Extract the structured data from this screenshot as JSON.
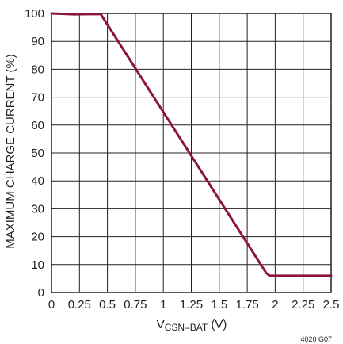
{
  "chart_data": {
    "type": "line",
    "ylabel": "MAXIMUM CHARGE CURRENT (%)",
    "xlabel_main": "V",
    "xlabel_sub": "CSN–BAT",
    "xlabel_unit": " (V)",
    "figure_code": "4020 G07",
    "xlim": [
      0,
      2.5
    ],
    "ylim": [
      0,
      100
    ],
    "x_ticks": [
      0,
      0.25,
      0.5,
      0.75,
      1,
      1.25,
      1.5,
      1.75,
      2,
      2.25,
      2.5
    ],
    "x_tick_labels": [
      "0",
      "0.25",
      "0.5",
      "0.75",
      "1",
      "1.25",
      "1.5",
      "1.75",
      "2",
      "2.25",
      "2.5"
    ],
    "y_ticks": [
      0,
      10,
      20,
      30,
      40,
      50,
      60,
      70,
      80,
      90,
      100
    ],
    "y_tick_labels": [
      "0",
      "10",
      "20",
      "30",
      "40",
      "50",
      "60",
      "70",
      "80",
      "90",
      "100"
    ],
    "grid": true,
    "series": [
      {
        "color": "#8b1538",
        "x": [
          0,
          0.2,
          0.44,
          0.46,
          1.92,
          1.95,
          2.5
        ],
        "y": [
          100,
          99.7,
          99.8,
          98.5,
          7,
          6,
          6
        ]
      }
    ]
  }
}
